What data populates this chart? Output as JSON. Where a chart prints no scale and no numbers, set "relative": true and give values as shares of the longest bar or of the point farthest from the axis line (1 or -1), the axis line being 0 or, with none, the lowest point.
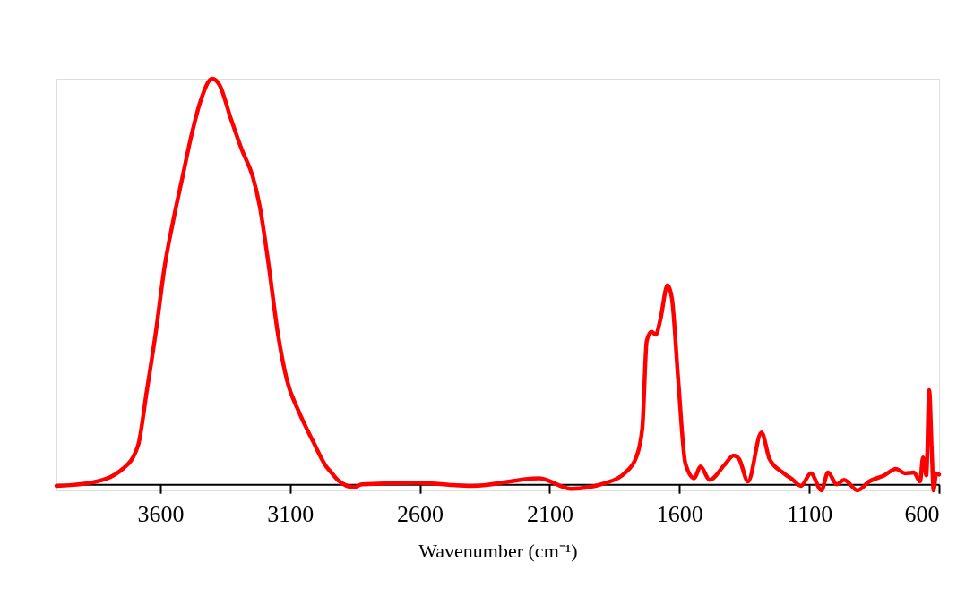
{
  "chart_data": {
    "type": "line",
    "relative": true,
    "xlabel": "Wavenumber (cm⁻¹)",
    "xlim": [
      4000,
      600
    ],
    "xticks": [
      3600,
      3100,
      2600,
      2100,
      1600,
      1100,
      600
    ],
    "tick_labels": "x",
    "grid": false,
    "line_style": "solid",
    "series": [
      {
        "color": "#ff0000",
        "x": [
          4000,
          3866,
          3745,
          3686,
          3652,
          3617,
          3583,
          3548,
          3514,
          3479,
          3445,
          3400,
          3372,
          3331,
          3286,
          3244,
          3217,
          3182,
          3148,
          3113,
          3065,
          3010,
          2961,
          2941,
          2917,
          2854,
          2823,
          2613,
          2400,
          2140,
          2019,
          1881,
          1812,
          1767,
          1743,
          1726,
          1708,
          1691,
          1674,
          1646,
          1629,
          1605,
          1577,
          1543,
          1519,
          1484,
          1425,
          1391,
          1370,
          1336,
          1284,
          1253,
          1198,
          1163,
          1132,
          1094,
          1053,
          1028,
          994,
          966,
          914,
          869,
          811,
          766,
          731,
          697,
          673,
          662,
          649,
          638,
          628,
          621,
          611,
          600
        ],
        "values": [
          -0.004,
          0.004,
          0.038,
          0.095,
          0.23,
          0.376,
          0.538,
          0.657,
          0.759,
          0.863,
          0.945,
          1,
          0.985,
          0.907,
          0.825,
          0.759,
          0.686,
          0.538,
          0.376,
          0.259,
          0.177,
          0.104,
          0.044,
          0.029,
          0.011,
          -0.007,
          0,
          0.004,
          -0.004,
          0.015,
          -0.011,
          0.004,
          0.027,
          0.066,
          0.139,
          0.354,
          0.376,
          0.369,
          0.405,
          0.491,
          0.458,
          0.259,
          0.051,
          0.015,
          0.044,
          0.011,
          0.049,
          0.071,
          0.062,
          0.007,
          0.128,
          0.062,
          0.027,
          0.011,
          -0.004,
          0.027,
          -0.015,
          0.029,
          0,
          0.011,
          -0.015,
          0.007,
          0.022,
          0.038,
          0.027,
          0.029,
          0.007,
          0.066,
          0.022,
          0.232,
          0.082,
          -0.015,
          0.027,
          0.024
        ]
      }
    ]
  }
}
